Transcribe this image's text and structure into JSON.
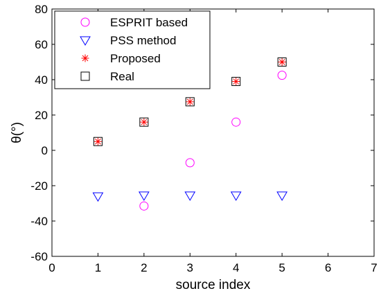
{
  "chart_data": {
    "type": "scatter",
    "xlabel": "source index",
    "ylabel": "θ(°)",
    "xlim": [
      0,
      7
    ],
    "ylim": [
      -60,
      80
    ],
    "xticks": [
      0,
      1,
      2,
      3,
      4,
      5,
      6,
      7
    ],
    "yticks": [
      -60,
      -40,
      -20,
      0,
      20,
      40,
      60,
      80
    ],
    "grid": false,
    "legend_position": "top-left",
    "series": [
      {
        "name": "ESPRIT based",
        "marker": "circle",
        "color": "#ff00ff",
        "x": [
          2,
          3,
          4,
          5
        ],
        "y": [
          -31.5,
          -7,
          16,
          42.5
        ]
      },
      {
        "name": "PSS method",
        "marker": "triangle-down",
        "color": "#0000ff",
        "x": [
          1,
          2,
          3,
          4,
          5
        ],
        "y": [
          -26,
          -25.5,
          -25.5,
          -25.5,
          -25.5
        ]
      },
      {
        "name": "Proposed",
        "marker": "asterisk",
        "color": "#ff0000",
        "x": [
          1,
          2,
          3,
          4,
          5
        ],
        "y": [
          5,
          16,
          27.5,
          39,
          50
        ]
      },
      {
        "name": "Real",
        "marker": "square",
        "color": "#000000",
        "x": [
          1,
          2,
          3,
          4,
          5
        ],
        "y": [
          5,
          16,
          27.5,
          39,
          50
        ]
      }
    ]
  }
}
